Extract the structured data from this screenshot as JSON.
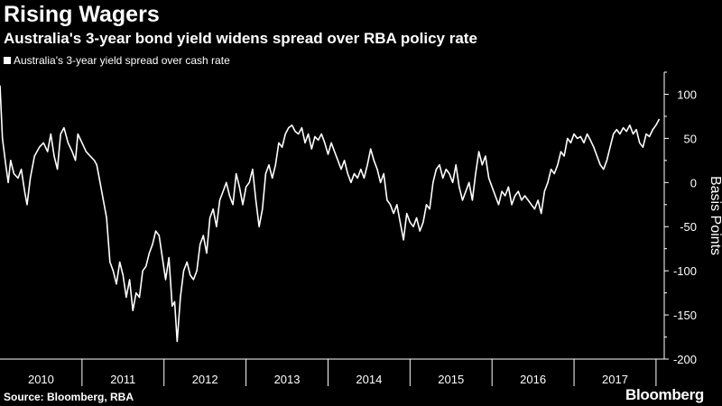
{
  "header": {
    "title": "Rising Wagers",
    "subtitle": "Australia's 3-year bond yield widens spread over RBA policy rate"
  },
  "footer": {
    "source": "Source: Bloomberg, RBA",
    "brand": "Bloomberg"
  },
  "chart_data": {
    "type": "line",
    "ylabel": "Basis Points",
    "ylim": [
      -200,
      125
    ],
    "yticks": [
      100,
      50,
      0,
      -50,
      -100,
      -150,
      -200
    ],
    "xlim": [
      2010.0,
      2018.1
    ],
    "year_labels": [
      "2010",
      "2011",
      "2012",
      "2013",
      "2014",
      "2015",
      "2016",
      "2017"
    ],
    "legend": {
      "placement": "top-left"
    },
    "grid": false,
    "colors": {
      "background": "#000000",
      "line": "#ffffff"
    },
    "series": [
      {
        "name": "Australia's 3-year yield spread over cash rate",
        "points": [
          [
            2010.0,
            110
          ],
          [
            2010.03,
            50
          ],
          [
            2010.07,
            20
          ],
          [
            2010.1,
            0
          ],
          [
            2010.13,
            25
          ],
          [
            2010.17,
            10
          ],
          [
            2010.22,
            5
          ],
          [
            2010.26,
            15
          ],
          [
            2010.3,
            -10
          ],
          [
            2010.33,
            -25
          ],
          [
            2010.37,
            5
          ],
          [
            2010.42,
            30
          ],
          [
            2010.48,
            40
          ],
          [
            2010.53,
            45
          ],
          [
            2010.58,
            35
          ],
          [
            2010.62,
            55
          ],
          [
            2010.66,
            30
          ],
          [
            2010.7,
            15
          ],
          [
            2010.74,
            55
          ],
          [
            2010.78,
            62
          ],
          [
            2010.83,
            45
          ],
          [
            2010.88,
            35
          ],
          [
            2010.92,
            25
          ],
          [
            2010.95,
            55
          ],
          [
            2011.0,
            45
          ],
          [
            2011.05,
            35
          ],
          [
            2011.1,
            30
          ],
          [
            2011.15,
            25
          ],
          [
            2011.18,
            20
          ],
          [
            2011.22,
            0
          ],
          [
            2011.26,
            -20
          ],
          [
            2011.3,
            -40
          ],
          [
            2011.34,
            -90
          ],
          [
            2011.38,
            -100
          ],
          [
            2011.42,
            -115
          ],
          [
            2011.46,
            -90
          ],
          [
            2011.5,
            -105
          ],
          [
            2011.54,
            -130
          ],
          [
            2011.58,
            -110
          ],
          [
            2011.62,
            -145
          ],
          [
            2011.66,
            -125
          ],
          [
            2011.7,
            -130
          ],
          [
            2011.74,
            -100
          ],
          [
            2011.78,
            -95
          ],
          [
            2011.82,
            -80
          ],
          [
            2011.86,
            -70
          ],
          [
            2011.9,
            -55
          ],
          [
            2011.94,
            -60
          ],
          [
            2011.98,
            -85
          ],
          [
            2012.02,
            -110
          ],
          [
            2012.06,
            -85
          ],
          [
            2012.1,
            -140
          ],
          [
            2012.13,
            -135
          ],
          [
            2012.16,
            -180
          ],
          [
            2012.2,
            -130
          ],
          [
            2012.24,
            -100
          ],
          [
            2012.28,
            -90
          ],
          [
            2012.32,
            -105
          ],
          [
            2012.36,
            -110
          ],
          [
            2012.4,
            -100
          ],
          [
            2012.44,
            -70
          ],
          [
            2012.48,
            -60
          ],
          [
            2012.52,
            -80
          ],
          [
            2012.56,
            -40
          ],
          [
            2012.6,
            -30
          ],
          [
            2012.64,
            -50
          ],
          [
            2012.68,
            -20
          ],
          [
            2012.72,
            -10
          ],
          [
            2012.76,
            0
          ],
          [
            2012.8,
            -15
          ],
          [
            2012.84,
            -25
          ],
          [
            2012.88,
            10
          ],
          [
            2012.92,
            -5
          ],
          [
            2012.96,
            -25
          ],
          [
            2013.0,
            -5
          ],
          [
            2013.04,
            0
          ],
          [
            2013.08,
            15
          ],
          [
            2013.12,
            -20
          ],
          [
            2013.16,
            -50
          ],
          [
            2013.2,
            -30
          ],
          [
            2013.24,
            10
          ],
          [
            2013.28,
            20
          ],
          [
            2013.32,
            5
          ],
          [
            2013.36,
            20
          ],
          [
            2013.4,
            45
          ],
          [
            2013.44,
            40
          ],
          [
            2013.48,
            55
          ],
          [
            2013.52,
            62
          ],
          [
            2013.56,
            65
          ],
          [
            2013.6,
            58
          ],
          [
            2013.64,
            55
          ],
          [
            2013.68,
            62
          ],
          [
            2013.72,
            45
          ],
          [
            2013.76,
            55
          ],
          [
            2013.8,
            38
          ],
          [
            2013.84,
            52
          ],
          [
            2013.88,
            48
          ],
          [
            2013.92,
            55
          ],
          [
            2013.96,
            45
          ],
          [
            2014.0,
            32
          ],
          [
            2014.04,
            45
          ],
          [
            2014.08,
            35
          ],
          [
            2014.12,
            25
          ],
          [
            2014.16,
            15
          ],
          [
            2014.2,
            25
          ],
          [
            2014.24,
            10
          ],
          [
            2014.28,
            0
          ],
          [
            2014.32,
            10
          ],
          [
            2014.36,
            5
          ],
          [
            2014.4,
            15
          ],
          [
            2014.44,
            5
          ],
          [
            2014.48,
            20
          ],
          [
            2014.52,
            38
          ],
          [
            2014.56,
            25
          ],
          [
            2014.6,
            15
          ],
          [
            2014.64,
            0
          ],
          [
            2014.68,
            10
          ],
          [
            2014.72,
            -20
          ],
          [
            2014.76,
            -25
          ],
          [
            2014.8,
            -35
          ],
          [
            2014.84,
            -25
          ],
          [
            2014.88,
            -45
          ],
          [
            2014.92,
            -65
          ],
          [
            2014.96,
            -35
          ],
          [
            2015.0,
            -45
          ],
          [
            2015.04,
            -50
          ],
          [
            2015.08,
            -40
          ],
          [
            2015.12,
            -55
          ],
          [
            2015.16,
            -45
          ],
          [
            2015.2,
            -25
          ],
          [
            2015.24,
            -30
          ],
          [
            2015.28,
            0
          ],
          [
            2015.32,
            15
          ],
          [
            2015.36,
            20
          ],
          [
            2015.4,
            5
          ],
          [
            2015.44,
            15
          ],
          [
            2015.48,
            10
          ],
          [
            2015.52,
            0
          ],
          [
            2015.56,
            20
          ],
          [
            2015.6,
            -5
          ],
          [
            2015.64,
            -20
          ],
          [
            2015.68,
            -10
          ],
          [
            2015.72,
            0
          ],
          [
            2015.76,
            -20
          ],
          [
            2015.8,
            10
          ],
          [
            2015.84,
            35
          ],
          [
            2015.88,
            20
          ],
          [
            2015.92,
            30
          ],
          [
            2015.96,
            5
          ],
          [
            2016.0,
            -5
          ],
          [
            2016.04,
            -15
          ],
          [
            2016.08,
            -25
          ],
          [
            2016.12,
            -10
          ],
          [
            2016.16,
            -15
          ],
          [
            2016.2,
            -5
          ],
          [
            2016.24,
            -25
          ],
          [
            2016.28,
            -15
          ],
          [
            2016.32,
            -10
          ],
          [
            2016.36,
            -20
          ],
          [
            2016.4,
            -15
          ],
          [
            2016.44,
            -20
          ],
          [
            2016.48,
            -25
          ],
          [
            2016.52,
            -30
          ],
          [
            2016.56,
            -20
          ],
          [
            2016.6,
            -35
          ],
          [
            2016.64,
            -10
          ],
          [
            2016.68,
            0
          ],
          [
            2016.72,
            15
          ],
          [
            2016.76,
            10
          ],
          [
            2016.8,
            20
          ],
          [
            2016.84,
            35
          ],
          [
            2016.88,
            30
          ],
          [
            2016.92,
            50
          ],
          [
            2016.96,
            45
          ],
          [
            2017.0,
            55
          ],
          [
            2017.04,
            50
          ],
          [
            2017.08,
            52
          ],
          [
            2017.12,
            45
          ],
          [
            2017.16,
            55
          ],
          [
            2017.2,
            48
          ],
          [
            2017.24,
            40
          ],
          [
            2017.28,
            30
          ],
          [
            2017.32,
            20
          ],
          [
            2017.36,
            15
          ],
          [
            2017.4,
            25
          ],
          [
            2017.44,
            40
          ],
          [
            2017.48,
            55
          ],
          [
            2017.52,
            60
          ],
          [
            2017.56,
            55
          ],
          [
            2017.6,
            62
          ],
          [
            2017.64,
            58
          ],
          [
            2017.68,
            65
          ],
          [
            2017.72,
            55
          ],
          [
            2017.76,
            60
          ],
          [
            2017.8,
            45
          ],
          [
            2017.84,
            40
          ],
          [
            2017.88,
            55
          ],
          [
            2017.92,
            52
          ],
          [
            2017.96,
            60
          ],
          [
            2018.0,
            65
          ],
          [
            2018.04,
            72
          ]
        ]
      }
    ]
  }
}
